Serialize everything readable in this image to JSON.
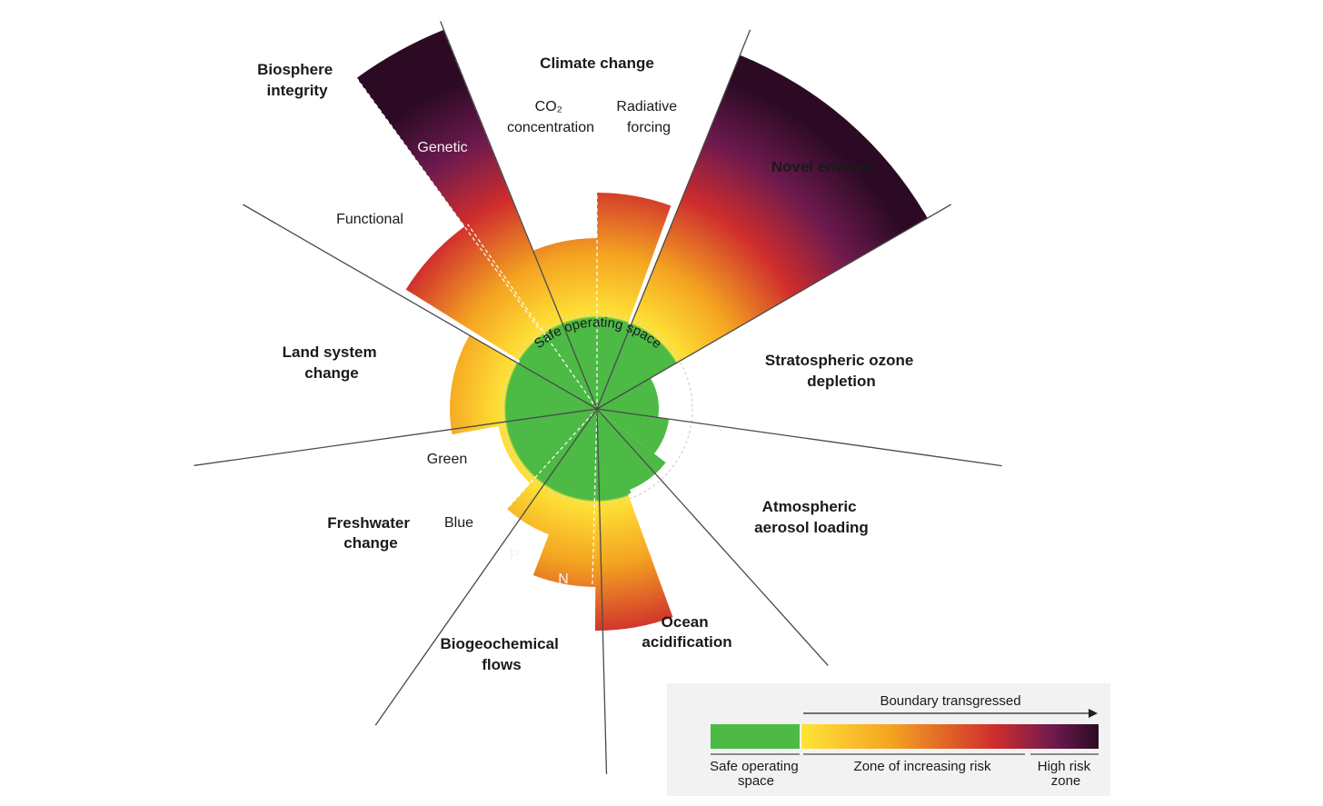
{
  "colors": {
    "safe": "#4cba45",
    "risk_start": "#ffe437",
    "risk_mid": "#f4a421",
    "risk_high": "#cf2d2d",
    "high_risk": "#6d1a4e",
    "high_risk_end": "#2c0a24"
  },
  "center_label": "Safe operating space",
  "boundaries": [
    {
      "label_lines": [
        "Climate change"
      ]
    },
    {
      "label_lines": [
        "Novel entities"
      ]
    },
    {
      "label_lines": [
        "Stratospheric ozone",
        "depletion"
      ]
    },
    {
      "label_lines": [
        "Atmospheric",
        "aerosol loading"
      ]
    },
    {
      "label_lines": [
        "Ocean",
        "acidification"
      ]
    },
    {
      "label_lines": [
        "Biogeochemical",
        "flows"
      ]
    },
    {
      "label_lines": [
        "Freshwater",
        "change"
      ]
    },
    {
      "label_lines": [
        "Land system",
        "change"
      ]
    },
    {
      "label_lines": [
        "Biosphere",
        "integrity"
      ]
    }
  ],
  "sub_labels": {
    "co2": [
      "CO₂",
      "concentration"
    ],
    "radiative": [
      "Radiative",
      "forcing"
    ],
    "genetic": "Genetic",
    "functional": "Functional",
    "green": "Green",
    "blue": "Blue",
    "p": "P",
    "n": "N"
  },
  "legend": {
    "title": "Boundary transgressed",
    "safe": [
      "Safe operating",
      "space"
    ],
    "increasing": "Zone of increasing risk",
    "high": [
      "High risk",
      "zone"
    ]
  }
}
